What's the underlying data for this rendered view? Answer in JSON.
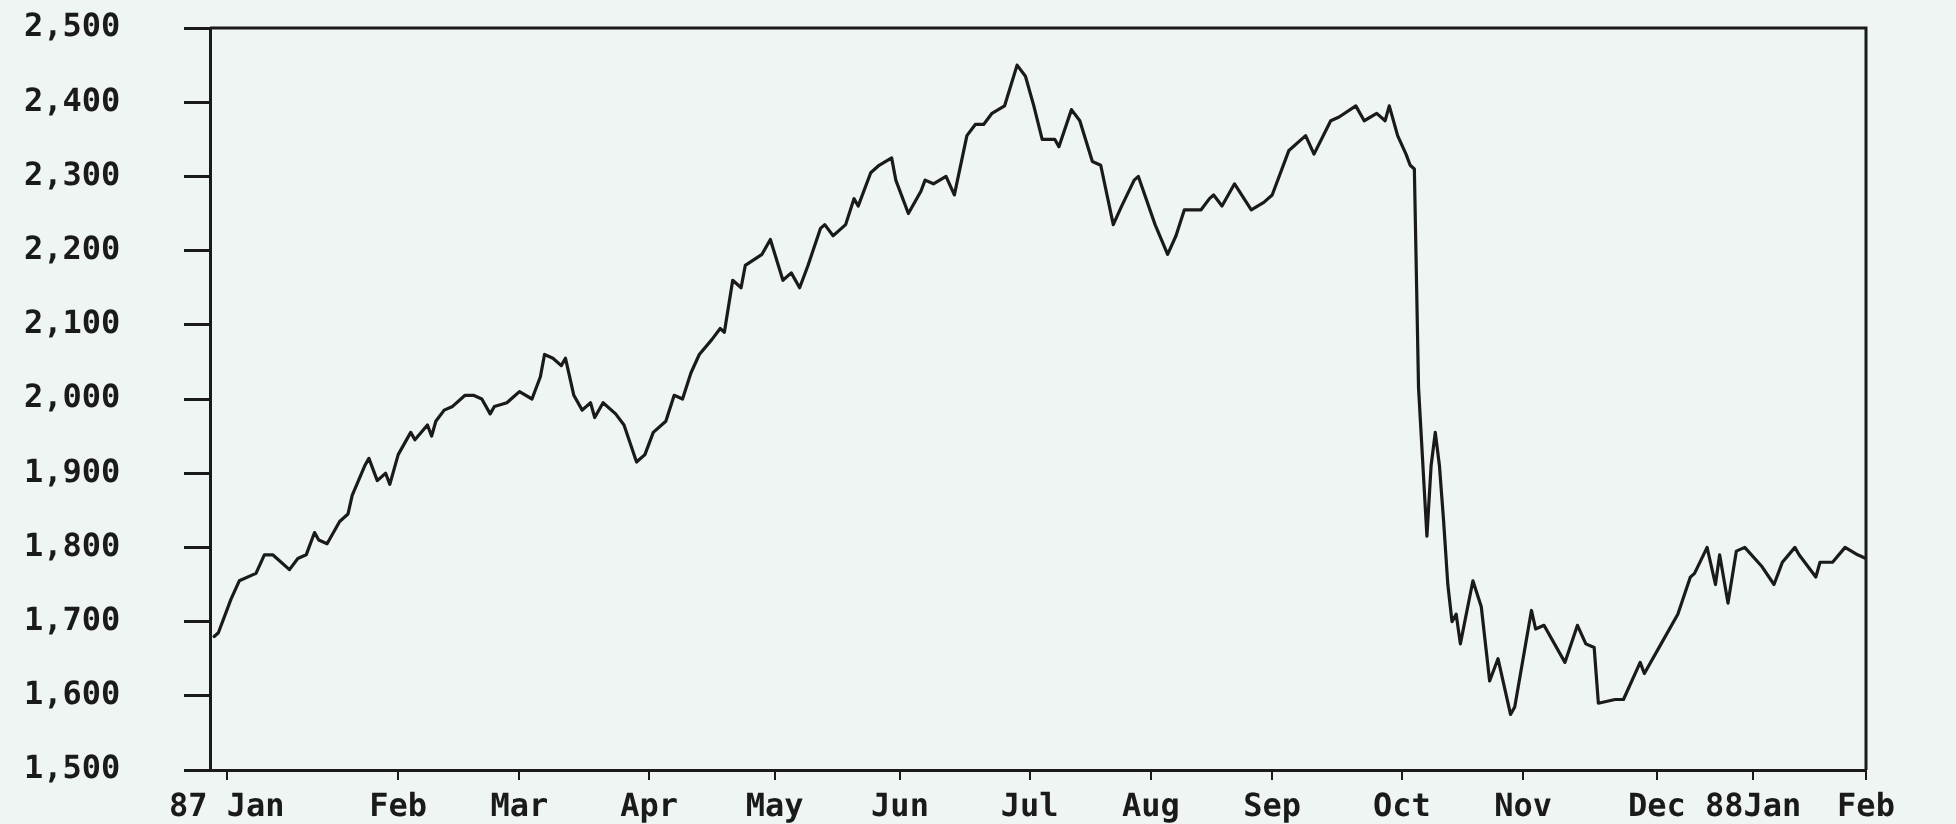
{
  "chart_data": {
    "type": "line",
    "color": "#1a1a1a",
    "xlim": [
      "1987-01-01",
      "1988-02-01"
    ],
    "xticks": [
      {
        "value": "1987-01-05",
        "label": "87 Jan"
      },
      {
        "value": "1987-02-15",
        "label": "Feb"
      },
      {
        "value": "1987-03-16",
        "label": "Mar"
      },
      {
        "value": "1987-04-16",
        "label": "Apr"
      },
      {
        "value": "1987-05-16",
        "label": "May"
      },
      {
        "value": "1987-06-15",
        "label": "Jun"
      },
      {
        "value": "1987-07-16",
        "label": "Jul"
      },
      {
        "value": "1987-08-14",
        "label": "Aug"
      },
      {
        "value": "1987-09-12",
        "label": "Sep"
      },
      {
        "value": "1987-10-13",
        "label": "Oct"
      },
      {
        "value": "1987-11-11",
        "label": "Nov"
      },
      {
        "value": "1987-12-13",
        "label": "Dec"
      },
      {
        "value": "1988-01-05",
        "label": "88Jan"
      },
      {
        "value": "1988-02-01",
        "label": "Feb"
      }
    ],
    "ylim": [
      1500,
      2500
    ],
    "yticks": [
      {
        "value": 1500,
        "label": "1,500"
      },
      {
        "value": 1600,
        "label": "1,600"
      },
      {
        "value": 1700,
        "label": "1,700"
      },
      {
        "value": 1800,
        "label": "1,800"
      },
      {
        "value": 1900,
        "label": "1,900"
      },
      {
        "value": 2000,
        "label": "2,000"
      },
      {
        "value": 2100,
        "label": "2,100"
      },
      {
        "value": 2200,
        "label": "2,200"
      },
      {
        "value": 2300,
        "label": "2,300"
      },
      {
        "value": 2400,
        "label": "2,400"
      },
      {
        "value": 2500,
        "label": "2,500"
      }
    ],
    "x": [
      "1987-01-02",
      "1987-01-03",
      "1987-01-06",
      "1987-01-08",
      "1987-01-12",
      "1987-01-14",
      "1987-01-16",
      "1987-01-20",
      "1987-01-22",
      "1987-01-24",
      "1987-01-26",
      "1987-01-27",
      "1987-01-29",
      "1987-02-01",
      "1987-02-03",
      "1987-02-04",
      "1987-02-07",
      "1987-02-08",
      "1987-02-10",
      "1987-02-12",
      "1987-02-13",
      "1987-02-15",
      "1987-02-18",
      "1987-02-19",
      "1987-02-22",
      "1987-02-23",
      "1987-02-24",
      "1987-02-26",
      "1987-02-28",
      "1987-03-03",
      "1987-03-05",
      "1987-03-07",
      "1987-03-09",
      "1987-03-10",
      "1987-03-13",
      "1987-03-16",
      "1987-03-19",
      "1987-03-21",
      "1987-03-22",
      "1987-03-24",
      "1987-03-26",
      "1987-03-27",
      "1987-03-29",
      "1987-03-31",
      "1987-04-02",
      "1987-04-03",
      "1987-04-05",
      "1987-04-08",
      "1987-04-10",
      "1987-04-13",
      "1987-04-15",
      "1987-04-17",
      "1987-04-20",
      "1987-04-22",
      "1987-04-24",
      "1987-04-26",
      "1987-04-28",
      "1987-05-01",
      "1987-05-03",
      "1987-05-04",
      "1987-05-06",
      "1987-05-08",
      "1987-05-09",
      "1987-05-13",
      "1987-05-15",
      "1987-05-18",
      "1987-05-20",
      "1987-05-22",
      "1987-05-24",
      "1987-05-27",
      "1987-05-28",
      "1987-05-30",
      "1987-06-01",
      "1987-06-02",
      "1987-06-04",
      "1987-06-05",
      "1987-06-08",
      "1987-06-10",
      "1987-06-13",
      "1987-06-14",
      "1987-06-17",
      "1987-06-20",
      "1987-06-21",
      "1987-06-23",
      "1987-06-26",
      "1987-06-28",
      "1987-07-01",
      "1987-07-03",
      "1987-07-05",
      "1987-07-07",
      "1987-07-10",
      "1987-07-13",
      "1987-07-15",
      "1987-07-17",
      "1987-07-19",
      "1987-07-22",
      "1987-07-23",
      "1987-07-26",
      "1987-07-28",
      "1987-07-31",
      "1987-08-02",
      "1987-08-05",
      "1987-08-07",
      "1987-08-10",
      "1987-08-11",
      "1987-08-15",
      "1987-08-18",
      "1987-08-20",
      "1987-08-22",
      "1987-08-26",
      "1987-08-28",
      "1987-08-29",
      "1987-08-31",
      "1987-09-03",
      "1987-09-07",
      "1987-09-10",
      "1987-09-12",
      "1987-09-16",
      "1987-09-20",
      "1987-09-22",
      "1987-09-26",
      "1987-09-28",
      "1987-10-02",
      "1987-10-04",
      "1987-10-07",
      "1987-10-09",
      "1987-10-10",
      "1987-10-12",
      "1987-10-14",
      "1987-10-15",
      "1987-10-16",
      "1987-10-17",
      "1987-10-19",
      "1987-10-20",
      "1987-10-21",
      "1987-10-22",
      "1987-10-23",
      "1987-10-24",
      "1987-10-25",
      "1987-10-26",
      "1987-10-27",
      "1987-10-30",
      "1987-11-01",
      "1987-11-03",
      "1987-11-05",
      "1987-11-08",
      "1987-11-09",
      "1987-11-13",
      "1987-11-14",
      "1987-11-16",
      "1987-11-21",
      "1987-11-24",
      "1987-11-26",
      "1987-11-28",
      "1987-11-29",
      "1987-12-03",
      "1987-12-05",
      "1987-12-09",
      "1987-12-10",
      "1987-12-14",
      "1987-12-18",
      "1987-12-21",
      "1987-12-22",
      "1987-12-25",
      "1987-12-27",
      "1987-12-28",
      "1987-12-30",
      "1988-01-01",
      "1988-01-03",
      "1988-01-07",
      "1988-01-10",
      "1988-01-12",
      "1988-01-15",
      "1988-01-16",
      "1988-01-20",
      "1988-01-21",
      "1988-01-24",
      "1988-01-27",
      "1988-01-30",
      "1988-02-01"
    ],
    "values": [
      1680,
      1685,
      1730,
      1755,
      1765,
      1790,
      1790,
      1770,
      1785,
      1790,
      1820,
      1810,
      1805,
      1835,
      1845,
      1870,
      1910,
      1920,
      1890,
      1900,
      1885,
      1925,
      1955,
      1945,
      1965,
      1950,
      1970,
      1985,
      1990,
      2005,
      2005,
      2000,
      1980,
      1990,
      1995,
      2010,
      2000,
      2030,
      2060,
      2055,
      2045,
      2055,
      2005,
      1985,
      1995,
      1975,
      1995,
      1980,
      1965,
      1915,
      1925,
      1955,
      1970,
      2005,
      2000,
      2035,
      2060,
      2080,
      2095,
      2090,
      2160,
      2150,
      2180,
      2195,
      2215,
      2160,
      2170,
      2150,
      2180,
      2230,
      2235,
      2220,
      2230,
      2235,
      2270,
      2260,
      2305,
      2315,
      2325,
      2295,
      2250,
      2280,
      2295,
      2290,
      2300,
      2275,
      2355,
      2370,
      2370,
      2385,
      2395,
      2450,
      2435,
      2395,
      2350,
      2350,
      2340,
      2390,
      2375,
      2320,
      2315,
      2235,
      2260,
      2295,
      2300,
      2235,
      2195,
      2220,
      2255,
      2255,
      2270,
      2275,
      2260,
      2290,
      2255,
      2265,
      2275,
      2335,
      2355,
      2330,
      2375,
      2380,
      2395,
      2375,
      2385,
      2375,
      2395,
      2355,
      2330,
      2315,
      2310,
      2015,
      1815,
      1910,
      1955,
      1910,
      1835,
      1750,
      1700,
      1710,
      1670,
      1755,
      1720,
      1620,
      1650,
      1575,
      1585,
      1715,
      1690,
      1695,
      1645,
      1695,
      1670,
      1665,
      1590,
      1595,
      1595,
      1645,
      1630,
      1670,
      1710,
      1760,
      1765,
      1800,
      1750,
      1790,
      1725,
      1795,
      1800,
      1775,
      1750,
      1780,
      1800,
      1790,
      1760,
      1780,
      1780,
      1800,
      1790,
      1785
    ]
  }
}
